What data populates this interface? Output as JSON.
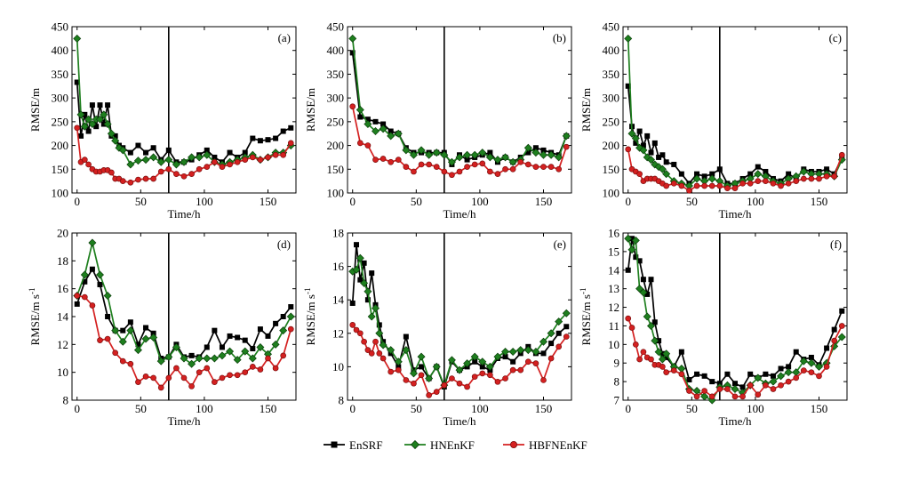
{
  "legend": {
    "entries": [
      {
        "name": "EnSRF",
        "color": "#000000",
        "marker": "square"
      },
      {
        "name": "HNEnKF",
        "color": "#1e7f1e",
        "marker": "diamond"
      },
      {
        "name": "HBFNEnKF",
        "color": "#d42020",
        "marker": "circle"
      }
    ]
  },
  "chart_data": [
    {
      "type": "line",
      "tag": "(a)",
      "xlabel": "Time/h",
      "ylabel": "RMSE/m",
      "xlim": [
        -4,
        172
      ],
      "ylim": [
        100,
        450
      ],
      "xticks": [
        0,
        50,
        100,
        150
      ],
      "yticks": [
        100,
        150,
        200,
        250,
        300,
        350,
        400,
        450
      ],
      "vline": 72,
      "x": [
        0,
        3,
        6,
        9,
        12,
        15,
        18,
        21,
        24,
        27,
        30,
        33,
        36,
        42,
        48,
        54,
        60,
        66,
        72,
        78,
        84,
        90,
        96,
        102,
        108,
        114,
        120,
        126,
        132,
        138,
        144,
        150,
        156,
        162,
        168
      ],
      "series": [
        {
          "name": "EnSRF",
          "color": "#000000",
          "marker": "square",
          "values": [
            333,
            220,
            265,
            230,
            285,
            240,
            285,
            245,
            285,
            220,
            220,
            200,
            195,
            185,
            200,
            185,
            195,
            170,
            190,
            165,
            165,
            170,
            180,
            190,
            175,
            165,
            185,
            175,
            185,
            215,
            210,
            212,
            215,
            230,
            237
          ]
        },
        {
          "name": "HNEnKF",
          "color": "#1e7f1e",
          "marker": "diamond",
          "values": [
            425,
            265,
            240,
            255,
            245,
            255,
            255,
            265,
            245,
            225,
            210,
            195,
            190,
            160,
            168,
            170,
            175,
            165,
            170,
            160,
            165,
            175,
            175,
            180,
            165,
            160,
            165,
            170,
            175,
            180,
            170,
            175,
            185,
            185,
            200
          ]
        },
        {
          "name": "HBFNEnKF",
          "color": "#d42020",
          "marker": "circle",
          "values": [
            237,
            165,
            170,
            160,
            150,
            145,
            145,
            148,
            148,
            143,
            130,
            130,
            125,
            122,
            128,
            130,
            130,
            145,
            150,
            140,
            135,
            140,
            150,
            155,
            165,
            155,
            160,
            165,
            170,
            175,
            170,
            175,
            180,
            180,
            205
          ]
        }
      ]
    },
    {
      "type": "line",
      "tag": "(b)",
      "xlabel": "Time/h",
      "ylabel": "RMSE/m",
      "xlim": [
        -4,
        172
      ],
      "ylim": [
        100,
        450
      ],
      "xticks": [
        0,
        50,
        100,
        150
      ],
      "yticks": [
        100,
        150,
        200,
        250,
        300,
        350,
        400,
        450
      ],
      "vline": 72,
      "x": [
        0,
        6,
        12,
        18,
        24,
        30,
        36,
        42,
        48,
        54,
        60,
        66,
        72,
        78,
        84,
        90,
        96,
        102,
        108,
        114,
        120,
        126,
        132,
        138,
        144,
        150,
        156,
        162,
        168
      ],
      "series": [
        {
          "name": "EnSRF",
          "color": "#000000",
          "marker": "square",
          "values": [
            395,
            260,
            255,
            250,
            245,
            230,
            225,
            195,
            185,
            185,
            185,
            185,
            185,
            160,
            180,
            170,
            175,
            180,
            185,
            165,
            175,
            165,
            175,
            185,
            195,
            190,
            185,
            180,
            220
          ]
        },
        {
          "name": "HNEnKF",
          "color": "#1e7f1e",
          "marker": "diamond",
          "values": [
            425,
            275,
            245,
            230,
            235,
            220,
            225,
            190,
            180,
            190,
            180,
            185,
            180,
            165,
            175,
            180,
            180,
            185,
            175,
            170,
            175,
            165,
            170,
            195,
            185,
            180,
            180,
            175,
            220
          ]
        },
        {
          "name": "HBFNEnKF",
          "color": "#d42020",
          "marker": "circle",
          "values": [
            282,
            205,
            200,
            170,
            172,
            165,
            170,
            155,
            145,
            160,
            160,
            155,
            145,
            138,
            145,
            155,
            160,
            162,
            145,
            140,
            150,
            150,
            165,
            160,
            155,
            155,
            155,
            150,
            197
          ]
        }
      ]
    },
    {
      "type": "line",
      "tag": "(c)",
      "xlabel": "Time/h",
      "ylabel": "RMSE/m",
      "xlim": [
        -4,
        172
      ],
      "ylim": [
        100,
        450
      ],
      "xticks": [
        0,
        50,
        100,
        150
      ],
      "yticks": [
        100,
        150,
        200,
        250,
        300,
        350,
        400,
        450
      ],
      "vline": 72,
      "x": [
        0,
        3,
        6,
        9,
        12,
        15,
        18,
        21,
        24,
        27,
        30,
        36,
        42,
        48,
        54,
        60,
        66,
        72,
        78,
        84,
        90,
        96,
        102,
        108,
        114,
        120,
        126,
        132,
        138,
        144,
        150,
        156,
        162,
        168
      ],
      "series": [
        {
          "name": "EnSRF",
          "color": "#000000",
          "marker": "square",
          "values": [
            325,
            240,
            205,
            230,
            200,
            220,
            185,
            205,
            175,
            180,
            165,
            160,
            140,
            120,
            140,
            135,
            140,
            150,
            120,
            120,
            130,
            140,
            155,
            145,
            130,
            125,
            140,
            130,
            150,
            145,
            145,
            150,
            140,
            175
          ]
        },
        {
          "name": "HNEnKF",
          "color": "#1e7f1e",
          "marker": "diamond",
          "values": [
            425,
            225,
            215,
            195,
            190,
            175,
            170,
            160,
            155,
            150,
            140,
            125,
            120,
            115,
            130,
            125,
            130,
            125,
            115,
            120,
            125,
            130,
            140,
            135,
            125,
            120,
            130,
            135,
            145,
            140,
            140,
            140,
            135,
            170
          ]
        },
        {
          "name": "HBFNEnKF",
          "color": "#d42020",
          "marker": "circle",
          "values": [
            192,
            150,
            145,
            140,
            125,
            130,
            130,
            130,
            125,
            120,
            115,
            120,
            115,
            105,
            115,
            115,
            115,
            115,
            110,
            110,
            120,
            120,
            125,
            125,
            120,
            115,
            120,
            125,
            130,
            130,
            130,
            135,
            135,
            180
          ]
        }
      ]
    },
    {
      "type": "line",
      "tag": "(d)",
      "xlabel": "Time/h",
      "ylabel": "RMSE/m s",
      "ylabel_sup": "-1",
      "xlim": [
        -4,
        172
      ],
      "ylim": [
        8,
        20
      ],
      "xticks": [
        0,
        50,
        100,
        150
      ],
      "yticks": [
        8,
        10,
        12,
        14,
        16,
        18,
        20
      ],
      "vline": 72,
      "x": [
        0,
        6,
        12,
        18,
        24,
        30,
        36,
        42,
        48,
        54,
        60,
        66,
        72,
        78,
        84,
        90,
        96,
        102,
        108,
        114,
        120,
        126,
        132,
        138,
        144,
        150,
        156,
        162,
        168
      ],
      "series": [
        {
          "name": "EnSRF",
          "color": "#000000",
          "marker": "square",
          "values": [
            14.9,
            16.5,
            17.4,
            16.3,
            14.0,
            13.0,
            13.0,
            13.6,
            12.0,
            13.2,
            12.8,
            11.0,
            11.1,
            12.0,
            11.1,
            11.2,
            11.1,
            11.8,
            13.0,
            11.8,
            12.6,
            12.5,
            12.3,
            11.7,
            13.1,
            12.6,
            13.5,
            14.0,
            14.7
          ]
        },
        {
          "name": "HNEnKF",
          "color": "#1e7f1e",
          "marker": "diamond",
          "values": [
            15.5,
            17.0,
            19.3,
            17.0,
            15.5,
            13.0,
            12.2,
            13.0,
            11.6,
            12.4,
            12.5,
            10.8,
            11.1,
            11.8,
            11.0,
            10.6,
            11.0,
            11.0,
            11.0,
            11.2,
            11.5,
            10.9,
            11.5,
            11.0,
            11.8,
            11.3,
            12.0,
            13.0,
            14.0
          ]
        },
        {
          "name": "HBFNEnKF",
          "color": "#d42020",
          "marker": "circle",
          "values": [
            15.5,
            15.4,
            14.8,
            12.3,
            12.4,
            11.4,
            10.8,
            10.6,
            9.3,
            9.7,
            9.6,
            8.9,
            9.6,
            10.3,
            9.6,
            9.0,
            10.0,
            10.3,
            9.3,
            9.6,
            9.8,
            9.8,
            10.0,
            10.4,
            10.2,
            11.0,
            10.3,
            11.2,
            13.1
          ]
        }
      ]
    },
    {
      "type": "line",
      "tag": "(e)",
      "xlabel": "Time/h",
      "ylabel": "RMSE/m s",
      "ylabel_sup": "-1",
      "xlim": [
        -4,
        172
      ],
      "ylim": [
        8,
        18
      ],
      "xticks": [
        0,
        50,
        100,
        150
      ],
      "yticks": [
        8,
        10,
        12,
        14,
        16,
        18
      ],
      "vline": 72,
      "x": [
        0,
        3,
        6,
        9,
        12,
        15,
        18,
        21,
        24,
        30,
        36,
        42,
        48,
        54,
        60,
        66,
        72,
        78,
        84,
        90,
        96,
        102,
        108,
        114,
        120,
        126,
        132,
        138,
        144,
        150,
        156,
        162,
        168
      ],
      "series": [
        {
          "name": "EnSRF",
          "color": "#000000",
          "marker": "square",
          "values": [
            13.8,
            17.3,
            15.2,
            16.2,
            14.0,
            15.6,
            13.7,
            12.5,
            11.5,
            10.8,
            10.0,
            11.8,
            9.8,
            10.0,
            9.3,
            10.0,
            8.8,
            10.3,
            9.8,
            10.0,
            10.3,
            10.0,
            9.8,
            10.5,
            10.6,
            10.3,
            10.8,
            11.2,
            10.8,
            10.8,
            11.4,
            12.0,
            12.4
          ]
        },
        {
          "name": "HNEnKF",
          "color": "#1e7f1e",
          "marker": "diamond",
          "values": [
            15.7,
            15.8,
            16.5,
            15.0,
            14.5,
            13.0,
            13.5,
            12.0,
            11.3,
            11.0,
            10.3,
            11.0,
            9.6,
            10.6,
            9.3,
            10.0,
            8.9,
            10.4,
            9.8,
            10.2,
            10.6,
            10.3,
            10.0,
            10.6,
            10.9,
            10.9,
            11.0,
            11.0,
            10.9,
            11.5,
            12.0,
            12.7,
            13.2
          ]
        },
        {
          "name": "HBFNEnKF",
          "color": "#d42020",
          "marker": "circle",
          "values": [
            12.5,
            12.2,
            12.0,
            11.5,
            11.0,
            10.8,
            11.5,
            10.8,
            10.5,
            9.7,
            9.8,
            9.2,
            9.0,
            9.5,
            8.3,
            8.5,
            8.9,
            9.3,
            9.0,
            8.8,
            9.4,
            9.6,
            9.5,
            9.1,
            9.3,
            9.8,
            9.8,
            10.3,
            10.2,
            9.2,
            10.5,
            11.2,
            11.8
          ]
        }
      ]
    },
    {
      "type": "line",
      "tag": "(f)",
      "xlabel": "Time/h",
      "ylabel": "RMSE/m s",
      "ylabel_sup": "-1",
      "xlim": [
        -4,
        172
      ],
      "ylim": [
        7,
        16
      ],
      "xticks": [
        0,
        50,
        100,
        150
      ],
      "yticks": [
        7,
        8,
        9,
        10,
        11,
        12,
        13,
        14,
        15,
        16
      ],
      "vline": 72,
      "x": [
        0,
        3,
        6,
        9,
        12,
        15,
        18,
        21,
        24,
        27,
        30,
        36,
        42,
        48,
        54,
        60,
        66,
        72,
        78,
        84,
        90,
        96,
        102,
        108,
        114,
        120,
        126,
        132,
        138,
        144,
        150,
        156,
        162,
        168
      ],
      "series": [
        {
          "name": "EnSRF",
          "color": "#000000",
          "marker": "square",
          "values": [
            14.0,
            15.7,
            14.7,
            14.5,
            13.5,
            12.7,
            13.5,
            11.2,
            10.2,
            9.5,
            9.3,
            8.8,
            9.6,
            8.1,
            8.4,
            8.3,
            8.0,
            7.9,
            8.4,
            7.9,
            7.7,
            8.4,
            8.2,
            8.4,
            8.3,
            8.7,
            8.8,
            9.6,
            9.2,
            9.3,
            8.9,
            9.8,
            10.8,
            11.8
          ]
        },
        {
          "name": "HNEnKF",
          "color": "#1e7f1e",
          "marker": "diamond",
          "values": [
            15.7,
            15.1,
            15.6,
            13.0,
            12.8,
            11.5,
            11.0,
            10.2,
            9.6,
            9.2,
            9.5,
            8.8,
            8.7,
            7.6,
            7.5,
            7.2,
            7.0,
            7.7,
            7.8,
            7.6,
            7.4,
            7.8,
            8.2,
            7.9,
            8.0,
            8.3,
            8.5,
            8.5,
            9.1,
            9.0,
            8.8,
            9.0,
            9.9,
            10.4
          ]
        },
        {
          "name": "HBFNEnKF",
          "color": "#d42020",
          "marker": "circle",
          "values": [
            11.4,
            10.9,
            10.0,
            9.2,
            9.6,
            9.3,
            9.2,
            8.9,
            8.9,
            8.8,
            8.5,
            8.6,
            8.4,
            7.5,
            7.2,
            7.5,
            7.2,
            7.6,
            7.6,
            7.2,
            7.2,
            7.8,
            7.3,
            7.8,
            7.6,
            7.8,
            8.0,
            8.2,
            8.6,
            8.5,
            8.3,
            8.8,
            10.2,
            11.0
          ]
        }
      ]
    }
  ]
}
